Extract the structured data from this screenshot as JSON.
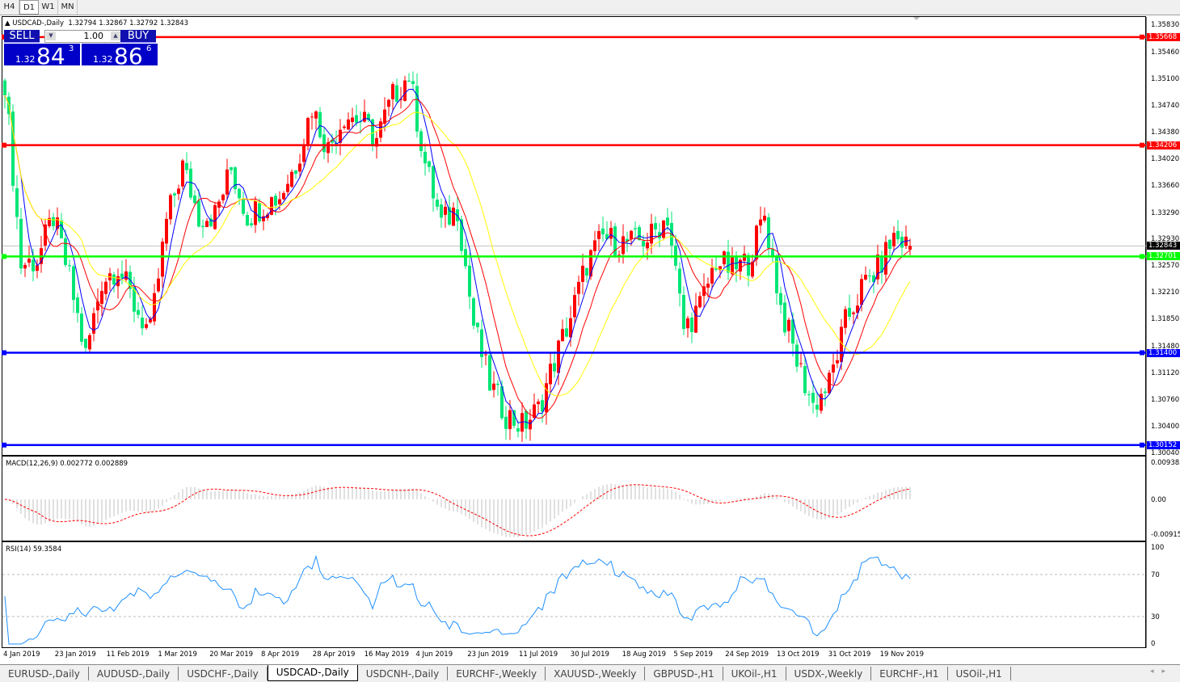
{
  "timeframes": [
    "H4",
    "D1",
    "W1",
    "MN"
  ],
  "active_timeframe": "D1",
  "chart": {
    "symbol_title": "USDCAD-,Daily",
    "ohlc": "1.32794 1.32867 1.32792 1.32843",
    "trade_panel": {
      "sell_label": "SELL",
      "buy_label": "BUY",
      "lot": "1.00",
      "sell_prefix": "1.32",
      "sell_big": "84",
      "sell_sup": "3",
      "buy_prefix": "1.32",
      "buy_big": "86",
      "buy_sup": "6"
    },
    "price_axis": [
      "1.35830",
      "1.35460",
      "1.35100",
      "1.34740",
      "1.34380",
      "1.34020",
      "1.33660",
      "1.33290",
      "1.32930",
      "1.32570",
      "1.32210",
      "1.31850",
      "1.31480",
      "1.31120",
      "1.30760",
      "1.30400",
      "1.30040"
    ],
    "price_range": [
      1.3004,
      1.3583
    ],
    "levels": [
      {
        "price": "1.35668",
        "color": "#ff0000"
      },
      {
        "price": "1.34206",
        "color": "#ff0000"
      },
      {
        "price": "1.32701",
        "color": "#00ff00"
      },
      {
        "price": "1.31400",
        "color": "#0000ff"
      },
      {
        "price": "1.30152",
        "color": "#0000ff"
      }
    ],
    "current_price": "1.32843",
    "up_color": "#ff0000",
    "down_color": "#00e676",
    "ma_colors": [
      "#0000ff",
      "#ff0000",
      "#ffff00"
    ],
    "approx_closes": [
      1.3508,
      1.3259,
      1.3265,
      1.3324,
      1.324,
      1.3136,
      1.3238,
      1.3257,
      1.3204,
      1.3166,
      1.3317,
      1.3392,
      1.3325,
      1.3327,
      1.3388,
      1.3325,
      1.3341,
      1.3352,
      1.3395,
      1.3473,
      1.3415,
      1.3462,
      1.3455,
      1.3429,
      1.3486,
      1.3516,
      1.3396,
      1.3314,
      1.3336,
      1.3178,
      1.3098,
      1.3057,
      1.3041,
      1.3063,
      1.3129,
      1.3189,
      1.3261,
      1.3296,
      1.3289,
      1.3289,
      1.3298,
      1.3325,
      1.3172,
      1.3202,
      1.3265,
      1.3251,
      1.3264,
      1.3327,
      1.3202,
      1.3129,
      1.3069,
      1.3098,
      1.318,
      1.3227,
      1.3253,
      1.3297,
      1.32843
    ],
    "dates": [
      "4 Jan 2019",
      "23 Jan 2019",
      "11 Feb 2019",
      "1 Mar 2019",
      "20 Mar 2019",
      "8 Apr 2019",
      "28 Apr 2019",
      "16 May 2019",
      "4 Jun 2019",
      "23 Jun 2019",
      "11 Jul 2019",
      "30 Jul 2019",
      "18 Aug 2019",
      "5 Sep 2019",
      "24 Sep 2019",
      "13 Oct 2019",
      "31 Oct 2019",
      "19 Nov 2019"
    ]
  },
  "macd": {
    "label": "MACD(12,26,9) 0.002772 0.002889",
    "axis": [
      "0.009383",
      "0.00",
      "-0.00915"
    ]
  },
  "rsi": {
    "label": "RSI(14) 59.3584",
    "axis": [
      "100",
      "70",
      "30",
      "0"
    ]
  },
  "tabs": [
    "EURUSD-,Daily",
    "AUDUSD-,Daily",
    "USDCHF-,Daily",
    "USDCAD-,Daily",
    "USDCNH-,Daily",
    "EURCHF-,Weekly",
    "XAUUSD-,Weekly",
    "GBPUSD-,H1",
    "UKOil-,H1",
    "USDX-,Weekly",
    "EURCHF-,H1",
    "USOil-,H1"
  ],
  "active_tab": "USDCAD-,Daily"
}
